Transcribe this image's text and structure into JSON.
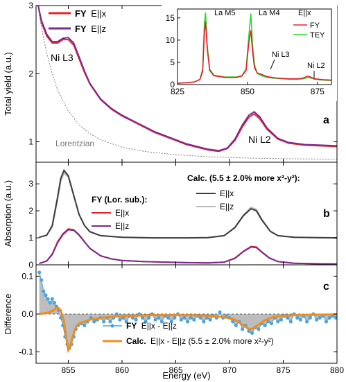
{
  "figure": {
    "x_axis_label": "Energy (eV)",
    "x_ticks": [
      855,
      860,
      865,
      870,
      875,
      880
    ],
    "xlim": [
      852,
      880
    ]
  },
  "chart_data": [
    {
      "panel": "a",
      "type": "line",
      "ylabel": "Total yield (a.u.)",
      "ylim": [
        0.7,
        3.0
      ],
      "y_ticks": [
        1,
        2,
        3
      ],
      "legend": [
        {
          "bold": "FY",
          "rest": "E||x",
          "color": "#e8202a"
        },
        {
          "bold": "FY",
          "rest": "E||z",
          "color": "#7b2a8e"
        }
      ],
      "annotations": {
        "ni_l3": "Ni L3",
        "ni_l2": "Ni L2",
        "lorentzian": "Lorentzian"
      },
      "series": [
        {
          "name": "FY E||x",
          "color": "#e8202a",
          "x": [
            852.2,
            852.5,
            853.0,
            853.5,
            854.0,
            854.5,
            855.0,
            855.5,
            856.0,
            856.5,
            857.0,
            858.0,
            859.0,
            860.0,
            861.0,
            862.0,
            863.0,
            864.0,
            865.0,
            866.0,
            867.0,
            868.0,
            869.0,
            869.8,
            870.5,
            871.2,
            871.8,
            872.3,
            872.8,
            873.5,
            874.5,
            875.5,
            877.0,
            878.5,
            880.0
          ],
          "y": [
            3.0,
            2.75,
            2.55,
            2.45,
            2.45,
            2.5,
            2.5,
            2.42,
            2.22,
            2.02,
            1.85,
            1.62,
            1.48,
            1.38,
            1.3,
            1.22,
            1.14,
            1.08,
            1.02,
            0.96,
            0.92,
            0.88,
            0.86,
            0.9,
            1.02,
            1.22,
            1.36,
            1.41,
            1.34,
            1.18,
            1.04,
            0.98,
            0.95,
            0.94,
            0.93
          ]
        },
        {
          "name": "FY E||z",
          "color": "#7b2a8e",
          "x": [
            852.2,
            852.5,
            853.0,
            853.5,
            854.0,
            854.5,
            855.0,
            855.5,
            856.0,
            856.5,
            857.0,
            858.0,
            859.0,
            860.0,
            861.0,
            862.0,
            863.0,
            864.0,
            865.0,
            866.0,
            867.0,
            868.0,
            869.0,
            869.8,
            870.5,
            871.2,
            871.8,
            872.3,
            872.8,
            873.5,
            874.5,
            875.5,
            877.0,
            878.5,
            880.0
          ],
          "y": [
            3.0,
            2.78,
            2.58,
            2.47,
            2.47,
            2.52,
            2.53,
            2.45,
            2.25,
            2.04,
            1.86,
            1.63,
            1.49,
            1.39,
            1.31,
            1.23,
            1.15,
            1.09,
            1.03,
            0.97,
            0.93,
            0.89,
            0.87,
            0.91,
            1.04,
            1.25,
            1.39,
            1.44,
            1.37,
            1.2,
            1.05,
            0.99,
            0.96,
            0.95,
            0.94
          ]
        },
        {
          "name": "Lorentzian",
          "color": "#7a7a7a",
          "dashed": true,
          "x": [
            852.2,
            852.6,
            853.0,
            853.5,
            854.0,
            855.0,
            856.0,
            857.0,
            858.0,
            860.0,
            862.0,
            865.0,
            868.0,
            872.0,
            876.0,
            880.0
          ],
          "y": [
            2.95,
            2.6,
            2.3,
            2.0,
            1.76,
            1.45,
            1.25,
            1.12,
            1.03,
            0.92,
            0.86,
            0.81,
            0.78,
            0.76,
            0.75,
            0.745
          ]
        }
      ]
    },
    {
      "panel": "a-inset",
      "type": "line",
      "xlim": [
        825,
        880
      ],
      "ylim": [
        0,
        17
      ],
      "x_ticks": [
        825,
        850,
        875
      ],
      "y_ticks": [
        0,
        5,
        10,
        15
      ],
      "legend_title": "E||x",
      "legend": [
        {
          "label": "FY",
          "color": "#e8202a"
        },
        {
          "label": "TEY",
          "color": "#2fd52f"
        }
      ],
      "annotations": {
        "la_m5": "La M5",
        "la_m4": "La M4",
        "ni_l3": "Ni L3",
        "ni_l2": "Ni L2"
      },
      "series": [
        {
          "name": "TEY",
          "color": "#2fd52f",
          "x": [
            825,
            828,
            831,
            833,
            834,
            834.6,
            835,
            835.6,
            836.5,
            838,
            842,
            846,
            848,
            849.5,
            850.5,
            851.2,
            851.8,
            852.5,
            853.5,
            855,
            857,
            860,
            865,
            868,
            870,
            871.5,
            872.5,
            874,
            877,
            880
          ],
          "y": [
            0.3,
            0.4,
            0.6,
            1.2,
            3.5,
            13.5,
            16.2,
            9.0,
            3.5,
            2.1,
            1.7,
            1.7,
            2.0,
            3.5,
            11.0,
            16.0,
            9.0,
            4.5,
            2.5,
            2.0,
            1.6,
            1.4,
            1.2,
            1.2,
            1.3,
            1.6,
            1.5,
            1.2,
            1.0,
            0.9
          ]
        },
        {
          "name": "FY",
          "color": "#e8202a",
          "x": [
            825,
            828,
            831,
            833,
            834,
            834.6,
            835,
            835.6,
            836.5,
            838,
            842,
            846,
            848,
            849.5,
            850.5,
            851.2,
            851.8,
            852.5,
            853.5,
            855,
            857,
            860,
            865,
            868,
            870,
            871.5,
            872.5,
            874,
            877,
            880
          ],
          "y": [
            0.3,
            0.4,
            0.6,
            1.1,
            3.0,
            11.5,
            14.2,
            8.2,
            3.2,
            2.0,
            1.6,
            1.6,
            1.9,
            3.2,
            9.5,
            12.2,
            7.5,
            3.8,
            2.6,
            2.3,
            1.8,
            1.5,
            1.3,
            1.3,
            1.5,
            1.9,
            1.7,
            1.3,
            1.1,
            1.0
          ]
        }
      ]
    },
    {
      "panel": "b",
      "type": "line",
      "ylabel": "Absorption (a.u.)",
      "ylim": [
        0,
        3.8
      ],
      "y_ticks": [
        0,
        1,
        2,
        3
      ],
      "legend_fy_title": "FY (Lor. sub.):",
      "legend_calc_title": "Calc. (5.5 ± 2.0% more x²-y²):",
      "legend_fy": [
        {
          "label": "E||x",
          "color": "#e8202a"
        },
        {
          "label": "E||z",
          "color": "#7b2a8e"
        }
      ],
      "legend_calc": [
        {
          "label": "E||x",
          "color": "#3c3c3c"
        },
        {
          "label": "E||z",
          "color": "#b9b9b9"
        }
      ],
      "series": [
        {
          "name": "FY E||x",
          "color": "#e8202a",
          "x": [
            852.3,
            853,
            853.5,
            854,
            854.5,
            855,
            855.5,
            856,
            856.5,
            857,
            858,
            859,
            860,
            862,
            864,
            866,
            868,
            869.5,
            870.5,
            871.3,
            872,
            872.5,
            873,
            873.7,
            874.5,
            876,
            878,
            880
          ],
          "y": [
            0.05,
            0.15,
            0.4,
            0.85,
            1.15,
            1.33,
            1.3,
            1.12,
            0.86,
            0.62,
            0.34,
            0.22,
            0.16,
            0.12,
            0.1,
            0.08,
            0.07,
            0.1,
            0.25,
            0.5,
            0.68,
            0.66,
            0.48,
            0.26,
            0.12,
            0.06,
            0.04,
            0.03
          ]
        },
        {
          "name": "FY E||z",
          "color": "#7b2a8e",
          "x": [
            852.3,
            853,
            853.5,
            854,
            854.5,
            855,
            855.5,
            856,
            856.5,
            857,
            858,
            859,
            860,
            862,
            864,
            866,
            868,
            869.5,
            870.5,
            871.3,
            872,
            872.5,
            873,
            873.7,
            874.5,
            876,
            878,
            880
          ],
          "y": [
            0.05,
            0.14,
            0.38,
            0.82,
            1.12,
            1.3,
            1.28,
            1.1,
            0.85,
            0.61,
            0.33,
            0.22,
            0.16,
            0.12,
            0.1,
            0.08,
            0.07,
            0.1,
            0.24,
            0.49,
            0.66,
            0.64,
            0.47,
            0.25,
            0.12,
            0.06,
            0.04,
            0.03
          ]
        },
        {
          "name": "Calc. E||z",
          "color": "#b9b9b9",
          "x": [
            852.3,
            853,
            853.5,
            854,
            854.3,
            854.6,
            855,
            855.5,
            856,
            856.5,
            857,
            858,
            860,
            863,
            866,
            868,
            869.5,
            870.5,
            871.3,
            872,
            872.5,
            873,
            873.8,
            874.5,
            876,
            878,
            880
          ],
          "y": [
            1.02,
            1.1,
            1.4,
            2.4,
            3.1,
            3.4,
            3.25,
            2.55,
            1.85,
            1.45,
            1.22,
            1.08,
            1.02,
            1.0,
            1.0,
            1.01,
            1.08,
            1.4,
            1.85,
            2.13,
            2.05,
            1.7,
            1.25,
            1.08,
            1.02,
            1.01,
            1.0
          ]
        },
        {
          "name": "Calc. E||x",
          "color": "#3c3c3c",
          "x": [
            852.3,
            853,
            853.5,
            854,
            854.3,
            854.6,
            855,
            855.5,
            856,
            856.5,
            857,
            858,
            860,
            863,
            866,
            868,
            869.5,
            870.5,
            871.3,
            872,
            872.5,
            873,
            873.8,
            874.5,
            876,
            878,
            880
          ],
          "y": [
            1.02,
            1.1,
            1.45,
            2.5,
            3.2,
            3.5,
            3.3,
            2.58,
            1.87,
            1.46,
            1.23,
            1.08,
            1.02,
            1.0,
            1.0,
            1.01,
            1.08,
            1.38,
            1.82,
            2.08,
            2.0,
            1.66,
            1.24,
            1.08,
            1.02,
            1.01,
            1.0
          ]
        }
      ]
    },
    {
      "panel": "c",
      "type": "line",
      "ylabel": "Difference",
      "ylim": [
        -0.13,
        0.13
      ],
      "y_ticks": [
        -0.1,
        0.0,
        0.1
      ],
      "y_tick_labels": [
        "-0.1",
        "0.0",
        "0.1"
      ],
      "legend": [
        {
          "bold": "FY",
          "rest": "E||x - E||z",
          "color": "#4da3e0"
        },
        {
          "bold": "Calc.",
          "rest": "E||x - E||z (5.5 ± 2.0% more x²-y²)",
          "color": "#f08c1a"
        }
      ],
      "series": [
        {
          "name": "FY E||x - E||z",
          "color": "#4da3e0",
          "markers": true,
          "x": [
            852.3,
            852.5,
            852.7,
            852.9,
            853.1,
            853.3,
            853.5,
            853.7,
            853.9,
            854.1,
            854.3,
            854.5,
            854.7,
            854.9,
            855.1,
            855.3,
            855.5,
            855.7,
            855.9,
            856.2,
            856.5,
            856.8,
            857.1,
            857.4,
            857.7,
            858.0,
            858.3,
            858.6,
            858.9,
            859.2,
            859.5,
            859.8,
            860.1,
            860.4,
            860.7,
            861.0,
            861.3,
            861.6,
            861.9,
            862.2,
            862.5,
            862.8,
            863.1,
            863.4,
            863.7,
            864.0,
            864.3,
            864.6,
            864.9,
            865.2,
            865.5,
            865.8,
            866.1,
            866.4,
            866.7,
            867.0,
            867.3,
            867.6,
            867.9,
            868.2,
            868.5,
            868.8,
            869.1,
            869.4,
            869.7,
            870.0,
            870.3,
            870.6,
            870.9,
            871.2,
            871.5,
            871.8,
            872.1,
            872.4,
            872.7,
            873.0,
            873.3,
            873.6,
            873.9,
            874.2,
            874.5,
            874.8,
            875.1,
            875.4,
            875.7,
            876.0,
            876.3,
            876.6,
            876.9,
            877.2,
            877.5,
            877.8,
            878.1,
            878.4,
            878.7,
            879.0,
            879.3,
            879.6,
            879.9
          ],
          "y": [
            0.11,
            0.09,
            0.06,
            0.05,
            0.04,
            0.03,
            0.04,
            0.03,
            0.02,
            0.01,
            -0.01,
            -0.03,
            -0.06,
            -0.08,
            -0.09,
            -0.08,
            -0.06,
            -0.04,
            -0.03,
            -0.025,
            -0.03,
            -0.02,
            -0.01,
            -0.02,
            -0.015,
            -0.01,
            -0.02,
            -0.01,
            -0.02,
            -0.01,
            0.0,
            -0.015,
            -0.01,
            -0.02,
            -0.005,
            -0.01,
            -0.015,
            0.0,
            -0.01,
            -0.02,
            -0.01,
            0.0,
            -0.015,
            -0.01,
            -0.02,
            -0.005,
            -0.01,
            -0.02,
            -0.01,
            0.0,
            -0.015,
            -0.01,
            -0.02,
            -0.01,
            -0.015,
            -0.005,
            -0.01,
            -0.02,
            -0.01,
            -0.015,
            -0.005,
            -0.01,
            0.005,
            -0.01,
            -0.005,
            -0.01,
            -0.02,
            -0.03,
            -0.02,
            -0.04,
            -0.03,
            -0.045,
            -0.05,
            -0.035,
            -0.04,
            -0.025,
            -0.03,
            -0.02,
            -0.025,
            -0.01,
            -0.02,
            -0.015,
            -0.005,
            -0.01,
            -0.02,
            0.0,
            -0.01,
            -0.015,
            -0.005,
            -0.02,
            -0.01,
            0.0,
            -0.015,
            -0.01,
            -0.005,
            -0.02,
            -0.01,
            -0.005,
            -0.01
          ]
        },
        {
          "name": "Calc. E||x - E||z (5.5 ± 2.0% more x²-y²)",
          "color": "#f08c1a",
          "x": [
            852.3,
            853.0,
            853.5,
            854.0,
            854.3,
            854.6,
            854.8,
            855.0,
            855.2,
            855.4,
            855.7,
            856.0,
            856.5,
            857.0,
            858.0,
            860.0,
            863.0,
            866.0,
            868.0,
            869.5,
            870.5,
            871.3,
            871.8,
            872.2,
            872.6,
            873.2,
            874.0,
            875.0,
            877.0,
            880.0
          ],
          "y": [
            0.0,
            0.003,
            0.008,
            0.018,
            0.01,
            -0.02,
            -0.06,
            -0.095,
            -0.085,
            -0.06,
            -0.035,
            -0.025,
            -0.02,
            -0.015,
            -0.01,
            -0.005,
            -0.003,
            -0.003,
            -0.004,
            -0.008,
            -0.015,
            -0.03,
            -0.04,
            -0.038,
            -0.03,
            -0.018,
            -0.008,
            -0.004,
            -0.002,
            -0.001
          ]
        }
      ]
    }
  ]
}
